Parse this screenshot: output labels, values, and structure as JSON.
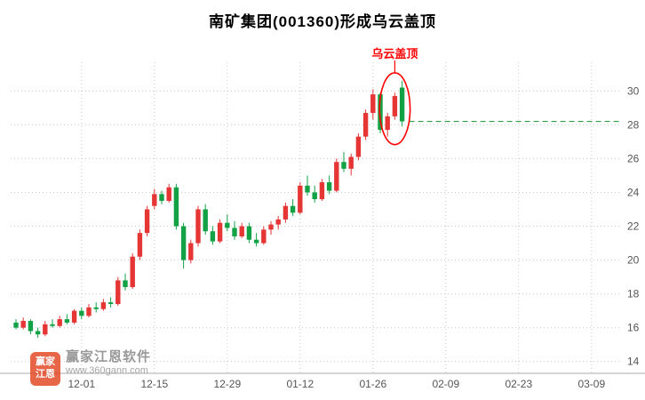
{
  "title": "南矿集团(001360)形成乌云盖顶",
  "annotation": {
    "label": "乌云盖顶"
  },
  "watermark": {
    "logo_line1": "赢家",
    "logo_line2": "江恩",
    "brand": "赢家江恩软件",
    "url": "www.360gann.com"
  },
  "colors": {
    "up": "#e53535",
    "down": "#12a245",
    "grid": "#c9c9c9",
    "axis": "#aaaaaa",
    "axis_text": "#555555",
    "target_line": "#2f9e44",
    "annotation": "#ff0000",
    "watermark_logo_bg": "#e2401b"
  },
  "chart_data": {
    "type": "candlestick",
    "title": "南矿集团(001360)形成乌云盖顶",
    "convention": {
      "up": "red",
      "down": "green"
    },
    "y_ticks": [
      30,
      28,
      26,
      24,
      22,
      20,
      18,
      16,
      14
    ],
    "ylim": [
      13.3,
      31.7
    ],
    "x_ticks": [
      {
        "label": "12-01",
        "slot": 9
      },
      {
        "label": "12-15",
        "slot": 19
      },
      {
        "label": "12-29",
        "slot": 29
      },
      {
        "label": "01-12",
        "slot": 39
      },
      {
        "label": "01-26",
        "slot": 49
      },
      {
        "label": "02-09",
        "slot": 59
      },
      {
        "label": "02-23",
        "slot": 69
      },
      {
        "label": "03-09",
        "slot": 79
      }
    ],
    "total_slots": 84,
    "candles": [
      [
        16.3,
        16.5,
        15.9,
        16.0
      ],
      [
        16.0,
        16.6,
        15.9,
        16.4
      ],
      [
        16.4,
        16.5,
        15.6,
        15.8
      ],
      [
        15.8,
        16.0,
        15.4,
        15.6
      ],
      [
        15.6,
        16.4,
        15.5,
        16.2
      ],
      [
        16.2,
        16.5,
        16.0,
        16.1
      ],
      [
        16.1,
        16.7,
        16.0,
        16.5
      ],
      [
        16.5,
        16.8,
        16.2,
        16.3
      ],
      [
        16.3,
        17.1,
        16.2,
        17.0
      ],
      [
        17.0,
        17.2,
        16.5,
        16.7
      ],
      [
        16.7,
        17.4,
        16.6,
        17.2
      ],
      [
        17.2,
        17.5,
        16.9,
        17.1
      ],
      [
        17.1,
        17.7,
        17.0,
        17.5
      ],
      [
        17.5,
        17.8,
        17.2,
        17.4
      ],
      [
        17.4,
        19.0,
        17.3,
        18.8
      ],
      [
        18.8,
        19.2,
        18.2,
        18.4
      ],
      [
        18.4,
        20.4,
        18.3,
        20.2
      ],
      [
        20.2,
        21.8,
        20.0,
        21.6
      ],
      [
        21.6,
        23.2,
        21.4,
        23.0
      ],
      [
        23.2,
        24.2,
        23.0,
        23.9
      ],
      [
        23.9,
        24.1,
        23.3,
        23.5
      ],
      [
        23.5,
        24.5,
        23.4,
        24.3
      ],
      [
        24.3,
        24.5,
        21.8,
        22.0
      ],
      [
        22.0,
        22.2,
        19.5,
        20.0
      ],
      [
        20.0,
        21.2,
        19.8,
        21.0
      ],
      [
        21.0,
        23.2,
        20.8,
        23.0
      ],
      [
        23.0,
        23.3,
        21.5,
        21.7
      ],
      [
        21.7,
        22.0,
        20.9,
        21.1
      ],
      [
        21.1,
        22.4,
        21.0,
        22.2
      ],
      [
        22.2,
        22.7,
        21.7,
        21.9
      ],
      [
        21.9,
        22.3,
        21.2,
        21.4
      ],
      [
        21.4,
        22.2,
        21.3,
        22.0
      ],
      [
        22.0,
        22.2,
        21.0,
        21.2
      ],
      [
        21.2,
        21.6,
        20.8,
        21.0
      ],
      [
        21.0,
        22.0,
        20.9,
        21.8
      ],
      [
        21.8,
        22.3,
        21.5,
        22.1
      ],
      [
        22.1,
        22.6,
        21.8,
        22.4
      ],
      [
        22.4,
        23.4,
        22.2,
        23.2
      ],
      [
        23.2,
        23.6,
        22.6,
        22.8
      ],
      [
        22.8,
        24.6,
        22.7,
        24.4
      ],
      [
        24.4,
        25.0,
        23.8,
        24.0
      ],
      [
        24.0,
        24.4,
        23.4,
        23.6
      ],
      [
        23.6,
        24.8,
        23.5,
        24.6
      ],
      [
        24.6,
        25.0,
        23.9,
        24.1
      ],
      [
        24.1,
        26.0,
        24.0,
        25.8
      ],
      [
        25.8,
        26.4,
        25.2,
        25.4
      ],
      [
        25.4,
        26.3,
        25.0,
        26.1
      ],
      [
        26.1,
        27.5,
        25.9,
        27.3
      ],
      [
        27.3,
        28.9,
        27.1,
        28.7
      ],
      [
        28.7,
        30.1,
        28.3,
        29.8
      ],
      [
        29.8,
        29.9,
        27.5,
        27.7
      ],
      [
        27.7,
        28.7,
        27.3,
        28.5
      ],
      [
        28.5,
        29.9,
        28.3,
        29.7
      ],
      [
        30.2,
        30.6,
        27.9,
        28.2
      ]
    ],
    "target_line_price": 28.2,
    "highlight": {
      "from": 51,
      "to": 53
    }
  }
}
